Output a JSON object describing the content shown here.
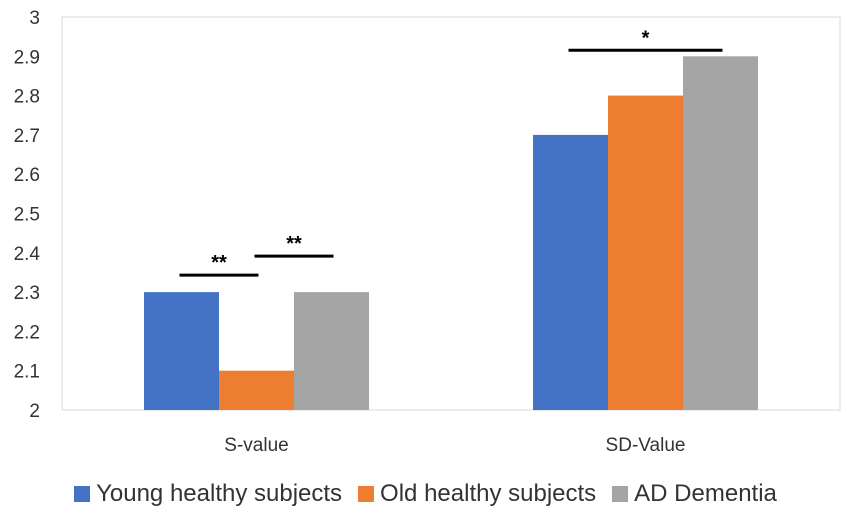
{
  "chart_data": {
    "type": "bar",
    "title": "",
    "xlabel": "",
    "ylabel": "",
    "categories": [
      "S-value",
      "SD-Value"
    ],
    "ylim": [
      2,
      3
    ],
    "yticks": [
      "2",
      "2.1",
      "2.2",
      "2.3",
      "2.4",
      "2.5",
      "2.6",
      "2.7",
      "2.8",
      "2.9",
      "3"
    ],
    "series": [
      {
        "name": "Young healthy subjects",
        "color": "#4472C4",
        "values": [
          2.3,
          2.7
        ]
      },
      {
        "name": "Old healthy subjects",
        "color": "#ED7D31",
        "values": [
          2.1,
          2.8
        ]
      },
      {
        "name": "AD Dementia",
        "color": "#A5A5A5",
        "values": [
          2.3,
          2.9
        ]
      }
    ],
    "annotations": [
      {
        "label": "**",
        "category": 0,
        "from_series": 0,
        "to_series": 1
      },
      {
        "label": "**",
        "category": 0,
        "from_series": 1,
        "to_series": 2
      },
      {
        "label": "*",
        "category": 1,
        "from_series": 0,
        "to_series": 2
      }
    ],
    "legend_position": "bottom",
    "grid": false
  }
}
